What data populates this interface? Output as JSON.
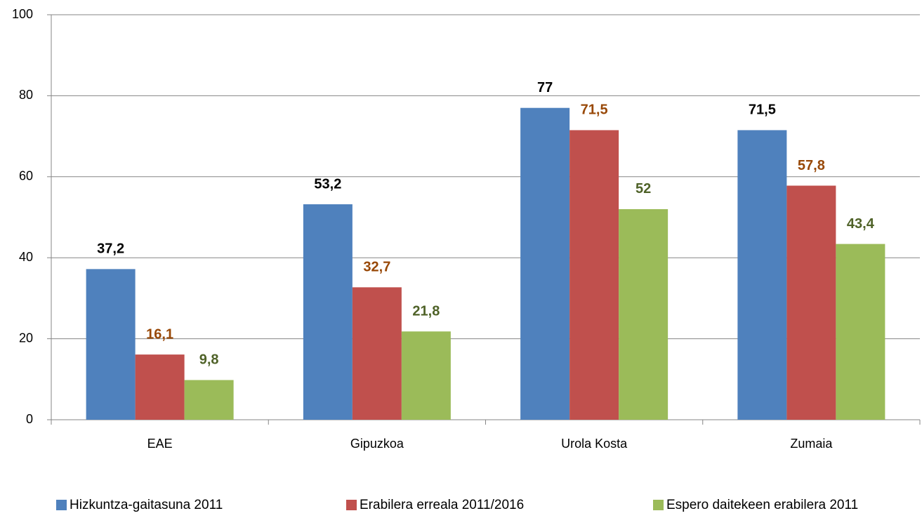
{
  "chart_data": {
    "type": "bar",
    "categories": [
      "EAE",
      "Gipuzkoa",
      "Urola Kosta",
      "Zumaia"
    ],
    "series": [
      {
        "name": "Hizkuntza-gaitasuna 2011",
        "color": "#4f81bd",
        "label_color": "#000000",
        "values": [
          37.2,
          53.2,
          77,
          71.5
        ],
        "value_labels": [
          "37,2",
          "53,2",
          "77",
          "71,5"
        ]
      },
      {
        "name": "Erabilera erreala 2011/2016",
        "color": "#c0504d",
        "label_color": "#984807",
        "values": [
          16.1,
          32.7,
          71.5,
          57.8
        ],
        "value_labels": [
          "16,1",
          "32,7",
          "71,5",
          "57,8"
        ]
      },
      {
        "name": "Espero daitekeen erabilera 2011",
        "color": "#9bbb59",
        "label_color": "#4f6228",
        "values": [
          9.8,
          21.8,
          52,
          43.4
        ],
        "value_labels": [
          "9,8",
          "21,8",
          "52",
          "43,4"
        ]
      }
    ],
    "ylim": [
      0,
      100
    ],
    "yticks": [
      0,
      20,
      40,
      60,
      80,
      100
    ],
    "grid": true,
    "legend": "bottom"
  }
}
